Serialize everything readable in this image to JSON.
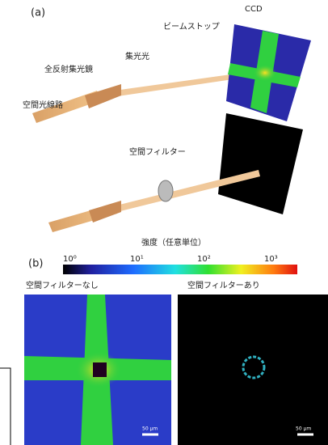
{
  "panel_a": {
    "label": "(a)",
    "detector": "CCD",
    "beam_stop": "ビームストップ",
    "focused_beam": "集光光",
    "mirror": "全反射集光鏡",
    "source_beam": "空間光線路",
    "spatial_filter": "空間フィルター"
  },
  "panel_b": {
    "label": "(b)",
    "colorbar_title": "強度（任意単位）",
    "colorbar_ticks": [
      "10⁰",
      "10¹",
      "10²",
      "10³"
    ],
    "left_title": "空間フィルターなし",
    "right_title": "空間フィルターあり",
    "left_scale": "50 μm",
    "right_scale": "50 μm"
  }
}
